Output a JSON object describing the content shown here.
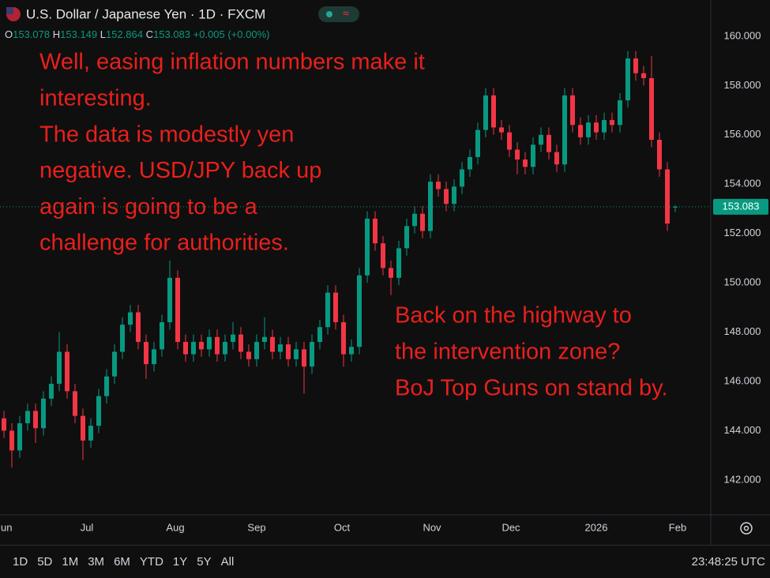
{
  "header": {
    "title": "U.S. Dollar / Japanese Yen · 1D · FXCM",
    "ohlc_letters": [
      "O",
      "H",
      "L",
      "C"
    ],
    "change": "+0.005",
    "change_pct": "(+0.00%)"
  },
  "chart_data": {
    "type": "candlestick",
    "up_color": "#089981",
    "down_color": "#f23645",
    "open": [
      144.5,
      144.0,
      143.2,
      144.3,
      144.8,
      144.1,
      145.3,
      145.9,
      147.2,
      145.6,
      144.6,
      143.6,
      144.2,
      145.4,
      146.2,
      147.2,
      148.3,
      148.8,
      147.6,
      146.7,
      147.3,
      148.4,
      150.2,
      147.6,
      147.1,
      147.6,
      147.3,
      147.8,
      147.1,
      147.6,
      147.9,
      147.2,
      146.9,
      147.6,
      147.8,
      147.2,
      147.5,
      146.9,
      147.3,
      146.6,
      147.6,
      148.2,
      149.6,
      148.4,
      147.1,
      147.4,
      150.3,
      152.6,
      151.6,
      150.6,
      150.2,
      151.4,
      152.3,
      152.8,
      152.1,
      154.1,
      153.8,
      153.2,
      153.9,
      154.6,
      155.1,
      156.2,
      157.6,
      156.3,
      156.1,
      155.4,
      155.0,
      154.7,
      155.6,
      156.0,
      155.3,
      154.8,
      157.6,
      156.4,
      155.9,
      156.5,
      156.1,
      156.6,
      156.4,
      157.4,
      159.1,
      158.5,
      158.3,
      155.8,
      154.6,
      153.078
    ],
    "high": [
      144.8,
      144.3,
      144.6,
      145.1,
      145.1,
      145.6,
      146.2,
      148.0,
      147.5,
      145.9,
      144.9,
      144.5,
      145.7,
      146.5,
      147.5,
      148.6,
      149.1,
      149.1,
      147.9,
      147.6,
      148.7,
      150.9,
      150.5,
      147.9,
      147.9,
      147.9,
      148.1,
      148.1,
      147.9,
      148.4,
      148.2,
      147.5,
      147.9,
      148.6,
      148.1,
      147.8,
      147.8,
      147.6,
      147.6,
      147.9,
      148.5,
      149.9,
      149.9,
      148.7,
      147.7,
      150.6,
      152.9,
      152.9,
      151.9,
      150.9,
      151.7,
      152.6,
      153.1,
      153.1,
      154.4,
      154.4,
      154.1,
      154.2,
      154.9,
      155.4,
      156.5,
      157.9,
      157.9,
      156.6,
      156.4,
      155.7,
      155.3,
      155.9,
      156.3,
      156.3,
      155.6,
      157.9,
      157.9,
      156.7,
      156.8,
      156.8,
      156.9,
      156.9,
      157.7,
      159.4,
      159.4,
      158.8,
      159.2,
      156.1,
      154.9,
      153.149
    ],
    "low": [
      143.7,
      142.5,
      142.9,
      144.0,
      143.5,
      143.8,
      145.0,
      145.6,
      145.3,
      144.3,
      142.8,
      143.3,
      143.9,
      145.1,
      145.9,
      146.9,
      148.0,
      147.3,
      146.1,
      146.4,
      147.0,
      148.1,
      147.3,
      146.8,
      146.8,
      147.0,
      147.0,
      146.8,
      146.8,
      147.3,
      146.9,
      146.6,
      146.6,
      147.3,
      146.9,
      146.9,
      146.6,
      146.6,
      145.5,
      146.3,
      147.3,
      147.9,
      148.1,
      146.6,
      146.8,
      147.1,
      150.0,
      151.3,
      150.3,
      149.5,
      149.9,
      151.1,
      152.0,
      151.8,
      151.8,
      153.5,
      152.9,
      152.9,
      153.6,
      154.3,
      154.8,
      155.9,
      156.0,
      155.8,
      155.1,
      154.4,
      154.4,
      154.4,
      155.3,
      155.0,
      154.5,
      154.5,
      156.1,
      155.6,
      155.6,
      155.8,
      155.8,
      156.1,
      156.1,
      157.1,
      158.2,
      158.0,
      155.5,
      154.3,
      152.1,
      152.864
    ],
    "close": [
      144.0,
      143.2,
      144.3,
      144.8,
      144.1,
      145.3,
      145.9,
      147.2,
      145.6,
      144.6,
      143.6,
      144.2,
      145.4,
      146.2,
      147.2,
      148.3,
      148.8,
      147.6,
      146.7,
      147.3,
      148.4,
      150.2,
      147.6,
      147.1,
      147.6,
      147.3,
      147.8,
      147.1,
      147.6,
      147.9,
      147.2,
      146.9,
      147.6,
      147.8,
      147.2,
      147.5,
      146.9,
      147.3,
      146.6,
      147.6,
      148.2,
      149.6,
      148.4,
      147.1,
      147.4,
      150.3,
      152.6,
      151.6,
      150.6,
      150.2,
      151.4,
      152.3,
      152.8,
      152.1,
      154.1,
      153.8,
      153.2,
      153.9,
      154.6,
      155.1,
      156.2,
      157.6,
      156.3,
      156.1,
      155.4,
      155.0,
      154.7,
      155.6,
      156.0,
      155.3,
      154.8,
      157.6,
      156.4,
      155.9,
      156.5,
      156.1,
      156.6,
      156.4,
      157.4,
      159.1,
      158.5,
      158.3,
      155.8,
      154.6,
      152.4,
      153.083
    ],
    "ylim": [
      140.65,
      161.47
    ],
    "yticks": [
      {
        "value": 142,
        "label": "142.000"
      },
      {
        "value": 144,
        "label": "144.000"
      },
      {
        "value": 146,
        "label": "146.000"
      },
      {
        "value": 148,
        "label": "148.000"
      },
      {
        "value": 150,
        "label": "150.000"
      },
      {
        "value": 152,
        "label": "152.000"
      },
      {
        "value": 154,
        "label": "154.000"
      },
      {
        "value": 156,
        "label": "156.000"
      },
      {
        "value": 158,
        "label": "158.000"
      },
      {
        "value": 160,
        "label": "160.000"
      }
    ],
    "xticks": [
      {
        "value": 0,
        "label": "Jun"
      },
      {
        "value": 10.5,
        "label": "Jul"
      },
      {
        "value": 21.7,
        "label": "Aug"
      },
      {
        "value": 32,
        "label": "Sep"
      },
      {
        "value": 42.8,
        "label": "Oct"
      },
      {
        "value": 54.2,
        "label": "Nov"
      },
      {
        "value": 64.2,
        "label": "Dec"
      },
      {
        "value": 75,
        "label": "2026"
      },
      {
        "value": 85.3,
        "label": "Feb"
      }
    ],
    "grid": false,
    "annotations": [
      {
        "lines": [
          "Well, easing inflation numbers make it",
          "interesting.",
          "The data is modestly yen",
          "negative. USD/JPY back up",
          "again is going to be a",
          "challenge for authorities."
        ]
      },
      {
        "lines": [
          "Back on the highway to",
          "the intervention zone?",
          "BoJ Top Guns on stand by."
        ]
      }
    ]
  },
  "toolbar": {
    "ranges": [
      "1D",
      "5D",
      "1M",
      "3M",
      "6M",
      "YTD",
      "1Y",
      "5Y",
      "All"
    ],
    "clock": "23:48:25 UTC"
  }
}
